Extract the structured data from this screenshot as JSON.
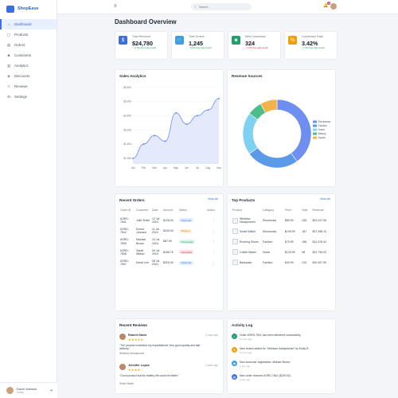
{
  "brand": {
    "name": "ShopEase"
  },
  "sidebar": {
    "items": [
      {
        "label": "Dashboard",
        "icon": "home-icon",
        "glyph": "⌂"
      },
      {
        "label": "Products",
        "icon": "box-icon",
        "glyph": "▢"
      },
      {
        "label": "Orders",
        "icon": "cart-icon",
        "glyph": "▤"
      },
      {
        "label": "Customers",
        "icon": "users-icon",
        "glyph": "☻"
      },
      {
        "label": "Analytics",
        "icon": "chart-icon",
        "glyph": "▥"
      },
      {
        "label": "Discounts",
        "icon": "tag-icon",
        "glyph": "◈"
      },
      {
        "label": "Reviews",
        "icon": "star-icon",
        "glyph": "✩"
      },
      {
        "label": "Settings",
        "icon": "gear-icon",
        "glyph": "⚙"
      }
    ],
    "user": {
      "name": "David Johnson",
      "role": "Admin"
    }
  },
  "topbar": {
    "search_placeholder": "Search...",
    "notifications": "3",
    "messages": "2"
  },
  "page": {
    "title": "Dashboard Overview"
  },
  "stats": [
    {
      "label": "Total Revenue",
      "value": "$24,780",
      "delta": "↑ 12.5% from last month",
      "dir": "up",
      "color": "#3b6fe0",
      "glyph": "$",
      "icon": "dollar-icon"
    },
    {
      "label": "Total Orders",
      "value": "1,245",
      "delta": "↑ 8.2% from last month",
      "dir": "up",
      "color": "#3aa0e8",
      "glyph": "🛒",
      "icon": "cart-icon"
    },
    {
      "label": "New Customers",
      "value": "324",
      "delta": "↓ 3.1% from last month",
      "dir": "down",
      "color": "#22a06b",
      "glyph": "☻",
      "icon": "user-plus-icon"
    },
    {
      "label": "Conversion Rate",
      "value": "3.42%",
      "delta": "↑ 2.3% from last month",
      "dir": "up",
      "color": "#f59e0b",
      "glyph": "%",
      "icon": "percent-icon"
    }
  ],
  "sales": {
    "title": "Sales Analytics",
    "chart_data": {
      "type": "area",
      "title": "Sales Analytics",
      "x": [
        "Jan",
        "Feb",
        "Mar",
        "Apr",
        "May",
        "Jun",
        "Jul",
        "Aug",
        "Sep"
      ],
      "series": [
        {
          "values": [
            1000,
            1500,
            1800,
            1600,
            2600,
            2200,
            2500,
            2700,
            3100
          ]
        }
      ],
      "yticks": [
        "$1,000",
        "$1,500",
        "$2,000",
        "$2,500",
        "$3,000",
        "$3,500"
      ],
      "ylim": [
        800,
        3600
      ],
      "color": "#6d8cf0"
    }
  },
  "revenue": {
    "title": "Revenue Sources",
    "chart_data": {
      "type": "pie",
      "categories": [
        "Electronics",
        "Fashion",
        "Home",
        "Beauty",
        "Sports"
      ],
      "values": [
        40,
        25,
        20,
        7,
        8
      ],
      "colors": [
        "#6f8ff0",
        "#5b9ae8",
        "#7fd1f2",
        "#4fbd8a",
        "#f4b24a"
      ],
      "legend": "right"
    }
  },
  "orders": {
    "title": "Recent Orders",
    "view_all": "View All",
    "headers": [
      "Order ID",
      "Customer",
      "Date",
      "Amount",
      "Status",
      "Action"
    ],
    "rows": [
      {
        "id": "#ORD-7841",
        "customer": "Julie Smith",
        "date": "12 Jul 2024",
        "amount": "$128.00",
        "status": "Delivered",
        "bg": "#e0efff",
        "fg": "#3b6fe0"
      },
      {
        "id": "#ORD-7842",
        "customer": "Emma Johnson",
        "date": "11 Jul 2024",
        "amount": "$249.00",
        "status": "Shipped",
        "bg": "#fff1dc",
        "fg": "#d97706"
      },
      {
        "id": "#ORD-7839",
        "customer": "Michael Brown",
        "date": "10 Jul 2024",
        "amount": "$87.99",
        "status": "Processing",
        "bg": "#dcf5ec",
        "fg": "#16a34a"
      },
      {
        "id": "#ORD-7838",
        "customer": "Sarah Wilson",
        "date": "09 Jul 2024",
        "amount": "$156.75",
        "status": "Cancelled",
        "bg": "#fde2e8",
        "fg": "#dc2626"
      },
      {
        "id": "#ORD-7837",
        "customer": "David Lee",
        "date": "08 Jul 2024",
        "amount": "$320.00",
        "status": "Delivered",
        "bg": "#e0efff",
        "fg": "#3b6fe0"
      }
    ]
  },
  "products": {
    "title": "Top Products",
    "view_all": "View All",
    "headers": [
      "Product",
      "Category",
      "Price",
      "Sold",
      "Revenue"
    ],
    "rows": [
      {
        "name": "Wireless Headphones",
        "category": "Electronics",
        "price": "$89.99",
        "sold": "245",
        "revenue": "$22,047.55"
      },
      {
        "name": "Smart Watch",
        "category": "Electronics",
        "price": "$199.99",
        "sold": "187",
        "revenue": "$37,398.13"
      },
      {
        "name": "Running Shoes",
        "category": "Fashion",
        "price": "$79.99",
        "sold": "156",
        "revenue": "$12,478.44"
      },
      {
        "name": "Coffee Maker",
        "category": "Home",
        "price": "$129.99",
        "sold": "98",
        "revenue": "$12,739.02"
      },
      {
        "name": "Backpack",
        "category": "Fashion",
        "price": "$49.99",
        "sold": "210",
        "revenue": "$10,497.90"
      }
    ]
  },
  "reviews": {
    "title": "Recent Reviews",
    "items": [
      {
        "name": "Robert Davis",
        "time": "2 days ago",
        "stars": "★★★★★",
        "text": "\"The product exceeded my expectations! Very good quality and fast delivery.\"",
        "product": "Wireless Headphones"
      },
      {
        "name": "Jennifer Lopez",
        "time": "1 week ago",
        "stars": "★★★★☆",
        "text": "\"Good product but the battery life could be better.\"",
        "product": "Smart Watch"
      }
    ]
  },
  "activity": {
    "title": "Activity Log",
    "items": [
      {
        "text": "Order #ORD-7841 has been delivered successfully",
        "time": "2 hours ago",
        "color": "#22a06b",
        "glyph": "✓"
      },
      {
        "text": "New review added for \"Wireless Headphones\" by Emily R.",
        "time": "5 hours ago",
        "color": "#f59e0b",
        "glyph": "★"
      },
      {
        "text": "New customer registration: Michael Brown",
        "time": "1 day ago",
        "color": "#3aa0e8",
        "glyph": "☻"
      },
      {
        "text": "New order received #ORD-7842 ($249.00)",
        "time": "1 day ago",
        "color": "#3b6fe0",
        "glyph": "▤"
      }
    ]
  }
}
